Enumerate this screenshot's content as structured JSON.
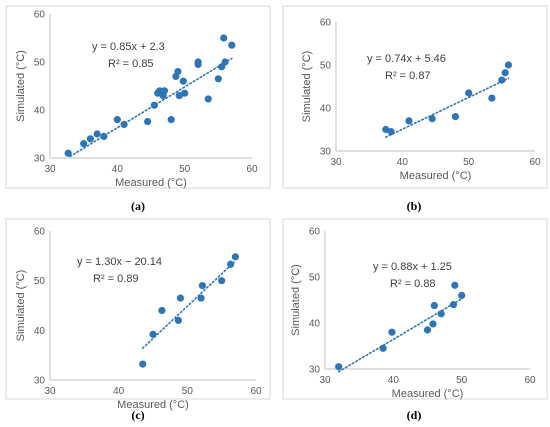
{
  "chart_data": [
    {
      "type": "scatter",
      "panel_label": "(a)",
      "xlabel": "Measured (°C)",
      "ylabel": "Simulated (°C)",
      "xlim": [
        30,
        60
      ],
      "ylim": [
        30,
        60
      ],
      "xticks": [
        "30",
        "40",
        "50",
        "60"
      ],
      "yticks": [
        "30",
        "40",
        "50",
        "60"
      ],
      "equation": "y = 0.85x + 2.3",
      "r2": "R² = 0.85",
      "trend": {
        "slope": 0.85,
        "intercept": 2.3,
        "x_range": [
          33,
          57
        ]
      },
      "color": "#2e75b6",
      "points": [
        [
          32.7,
          31.0
        ],
        [
          35.0,
          33.0
        ],
        [
          36.0,
          34.0
        ],
        [
          37.0,
          35.0
        ],
        [
          38.0,
          34.5
        ],
        [
          40.0,
          38.0
        ],
        [
          41.0,
          37.0
        ],
        [
          44.5,
          37.6
        ],
        [
          45.5,
          41.0
        ],
        [
          46.0,
          43.5
        ],
        [
          46.3,
          44.0
        ],
        [
          46.8,
          43.0
        ],
        [
          47.0,
          44.0
        ],
        [
          48.0,
          38.0
        ],
        [
          48.7,
          47.0
        ],
        [
          49.0,
          48.0
        ],
        [
          49.2,
          43.0
        ],
        [
          49.8,
          46.0
        ],
        [
          50.0,
          43.5
        ],
        [
          52.0,
          50.0
        ],
        [
          52.0,
          49.5
        ],
        [
          53.5,
          42.3
        ],
        [
          55.0,
          46.5
        ],
        [
          55.5,
          49.0
        ],
        [
          55.8,
          55.0
        ],
        [
          56.0,
          50.0
        ],
        [
          57.0,
          53.5
        ]
      ]
    },
    {
      "type": "scatter",
      "panel_label": "(b)",
      "xlabel": "Measured (°C)",
      "ylabel": "Simulated (°C)",
      "xlim": [
        30,
        60
      ],
      "ylim": [
        30,
        60
      ],
      "xticks": [
        "30",
        "40",
        "50",
        "60"
      ],
      "yticks": [
        "30",
        "40",
        "50",
        "60"
      ],
      "equation": "y = 0.74x + 5.46",
      "r2": "R² = 0.87",
      "trend": {
        "slope": 0.74,
        "intercept": 5.46,
        "x_range": [
          37.5,
          56
        ]
      },
      "color": "#2e75b6",
      "points": [
        [
          37.5,
          35.0
        ],
        [
          38.3,
          34.5
        ],
        [
          41.0,
          37.0
        ],
        [
          44.5,
          37.5
        ],
        [
          48.0,
          38.0
        ],
        [
          50.0,
          43.5
        ],
        [
          53.5,
          42.3
        ],
        [
          55.0,
          46.5
        ],
        [
          55.5,
          48.2
        ],
        [
          56.0,
          50.0
        ]
      ]
    },
    {
      "type": "scatter",
      "panel_label": "(c)",
      "xlabel": "Measured (°C)",
      "ylabel": "Simulated (°C)",
      "xlim": [
        30,
        60
      ],
      "ylim": [
        30,
        60
      ],
      "xticks": [
        "30",
        "40",
        "50",
        "60"
      ],
      "yticks": [
        "30",
        "40",
        "50",
        "60"
      ],
      "equation": "y = 1.30x − 20.14",
      "r2": "R² = 0.89",
      "trend": {
        "slope": 1.3,
        "intercept": -20.14,
        "x_range": [
          43.5,
          57
        ]
      },
      "color": "#2e75b6",
      "points": [
        [
          43.5,
          33.2
        ],
        [
          45.0,
          39.2
        ],
        [
          46.3,
          44.0
        ],
        [
          48.7,
          42.0
        ],
        [
          49.0,
          46.5
        ],
        [
          52.0,
          46.5
        ],
        [
          52.2,
          49.0
        ],
        [
          55.0,
          50.0
        ],
        [
          56.3,
          53.3
        ],
        [
          57.0,
          54.8
        ]
      ]
    },
    {
      "type": "scatter",
      "panel_label": "(d)",
      "xlabel": "Measured (°C)",
      "ylabel": "Simulated (°C)",
      "xlim": [
        30,
        60
      ],
      "ylim": [
        30,
        60
      ],
      "xticks": [
        "30",
        "40",
        "50",
        "60"
      ],
      "yticks": [
        "30",
        "40",
        "50",
        "60"
      ],
      "equation": "y = 0.88x + 1.25",
      "r2": "R² = 0.88",
      "trend": {
        "slope": 0.88,
        "intercept": 1.25,
        "x_range": [
          32,
          50
        ]
      },
      "color": "#2e75b6",
      "points": [
        [
          32.0,
          30.5
        ],
        [
          38.5,
          34.5
        ],
        [
          39.8,
          38.0
        ],
        [
          45.0,
          38.5
        ],
        [
          45.8,
          39.8
        ],
        [
          46.0,
          43.8
        ],
        [
          47.0,
          42.0
        ],
        [
          48.8,
          44.0
        ],
        [
          49.0,
          48.2
        ],
        [
          50.0,
          46.0
        ]
      ]
    }
  ]
}
